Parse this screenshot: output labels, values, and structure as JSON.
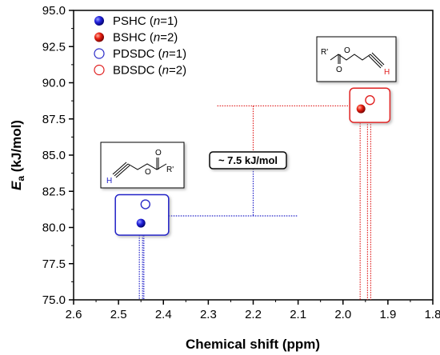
{
  "chart_data": {
    "type": "scatter",
    "title": "",
    "xlabel": "Chemical shift (ppm)",
    "ylabel_main": "E",
    "ylabel_sub": "a",
    "ylabel_rest": " (kJ/mol)",
    "xlim": [
      2.6,
      1.8
    ],
    "ylim": [
      75.0,
      95.0
    ],
    "x_reversed": true,
    "x_ticks": [
      "2.6",
      "2.5",
      "2.4",
      "2.3",
      "2.2",
      "2.1",
      "2.0",
      "1.9",
      "1.8"
    ],
    "x_tick_values": [
      2.6,
      2.5,
      2.4,
      2.3,
      2.2,
      2.1,
      2.0,
      1.9,
      1.8
    ],
    "y_ticks": [
      "75.0",
      "77.5",
      "80.0",
      "82.5",
      "85.0",
      "87.5",
      "90.0",
      "92.5",
      "95.0"
    ],
    "y_tick_values": [
      75.0,
      77.5,
      80.0,
      82.5,
      85.0,
      87.5,
      90.0,
      92.5,
      95.0
    ],
    "grid": false,
    "legend_position": "top-left",
    "series": [
      {
        "name": "PSHC (n=1)",
        "label_pre": "PSHC (",
        "label_it": "n",
        "label_post": "=1)",
        "marker": "filled-circle",
        "color": "#1c1ce0",
        "points": [
          {
            "x": 2.45,
            "y": 80.3
          }
        ]
      },
      {
        "name": "BSHC (n=2)",
        "label_pre": "BSHC (",
        "label_it": "n",
        "label_post": "=2)",
        "marker": "filled-circle",
        "color": "#e02020",
        "points": [
          {
            "x": 1.96,
            "y": 88.2
          }
        ]
      },
      {
        "name": "PDSDC (n=1)",
        "label_pre": "PDSDC (",
        "label_it": "n",
        "label_post": "=1)",
        "marker": "open-circle",
        "color": "#2a2ac8",
        "points": [
          {
            "x": 2.44,
            "y": 81.6
          }
        ]
      },
      {
        "name": "BDSDC (n=2)",
        "label_pre": "BDSDC (",
        "label_it": "n",
        "label_post": "=2)",
        "marker": "open-circle",
        "color": "#e02020",
        "points": [
          {
            "x": 1.94,
            "y": 88.8
          }
        ]
      }
    ],
    "annotations": {
      "difference_label": "~ 7.5 kJ/mol",
      "upper_molecule_R": "R'",
      "upper_molecule_O": "O",
      "upper_molecule_H": "H",
      "lower_molecule_R": "R'",
      "lower_molecule_O": "O",
      "lower_molecule_H": "H"
    },
    "colors": {
      "blue": "#2020c8",
      "red": "#e02020"
    }
  }
}
